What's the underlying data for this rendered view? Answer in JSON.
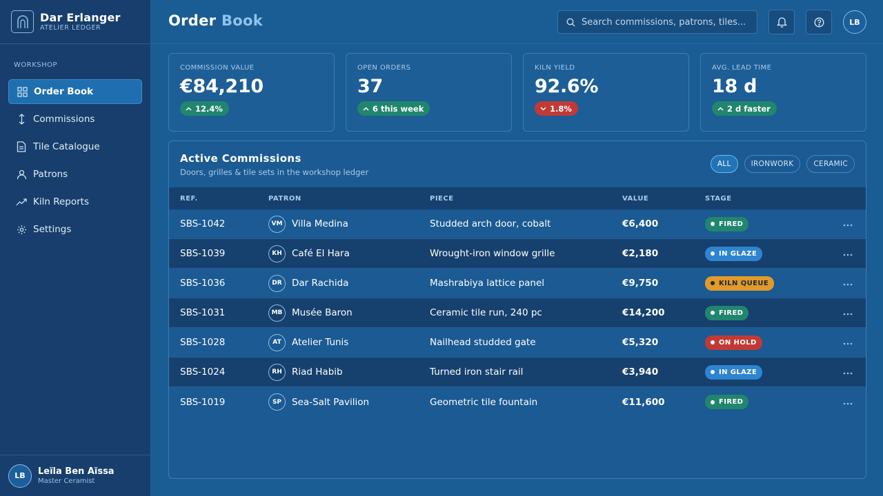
{
  "brand": {
    "name": "Dar Erlanger",
    "subtitle": "ATELIER LEDGER",
    "logo_icon": "arch-icon"
  },
  "sidebar": {
    "section_label": "WORKSHOP",
    "items": [
      {
        "label": "Order Book",
        "icon": "grid-icon",
        "active": true
      },
      {
        "label": "Commissions",
        "icon": "vertical-arrows-icon"
      },
      {
        "label": "Tile Catalogue",
        "icon": "document-icon"
      },
      {
        "label": "Patrons",
        "icon": "person-icon"
      },
      {
        "label": "Kiln Reports",
        "icon": "trend-icon"
      },
      {
        "label": "Settings",
        "icon": "gear-icon"
      }
    ],
    "user": {
      "initials": "LB",
      "name": "Leïla Ben Aïssa",
      "role": "Master Ceramist"
    }
  },
  "header": {
    "title_main": "Order",
    "title_accent": "Book",
    "search_placeholder": "Search commissions, patrons, tiles...",
    "avatar_initials": "LB"
  },
  "kpis": [
    {
      "label": "COMMISSION VALUE",
      "value": "€84,210",
      "badge": "12.4%",
      "trend": "up"
    },
    {
      "label": "OPEN ORDERS",
      "value": "37",
      "badge": "6 this week",
      "trend": "up"
    },
    {
      "label": "KILN YIELD",
      "value": "92.6%",
      "badge": "1.8%",
      "trend": "down"
    },
    {
      "label": "AVG. LEAD TIME",
      "value": "18 d",
      "badge": "2 d faster",
      "trend": "up"
    }
  ],
  "panel": {
    "title": "Active Commissions",
    "subtitle": "Doors, grilles & tile sets in the workshop ledger",
    "filters": [
      {
        "label": "ALL",
        "active": true
      },
      {
        "label": "IRONWORK"
      },
      {
        "label": "CERAMIC"
      }
    ],
    "columns": {
      "ref": "REF.",
      "patron": "PATRON",
      "piece": "PIECE",
      "value": "VALUE",
      "stage": "STAGE"
    },
    "rows": [
      {
        "ref": "SBS-1042",
        "initials": "VM",
        "patron": "Villa Medina",
        "piece": "Studded arch door, cobalt",
        "value": "€6,400",
        "stage": "FIRED",
        "stage_kind": "fired"
      },
      {
        "ref": "SBS-1039",
        "initials": "KH",
        "patron": "Café El Hara",
        "piece": "Wrought-iron window grille",
        "value": "€2,180",
        "stage": "IN GLAZE",
        "stage_kind": "glaze"
      },
      {
        "ref": "SBS-1036",
        "initials": "DR",
        "patron": "Dar Rachida",
        "piece": "Mashrabiya lattice panel",
        "value": "€9,750",
        "stage": "KILN QUEUE",
        "stage_kind": "queue"
      },
      {
        "ref": "SBS-1031",
        "initials": "MB",
        "patron": "Musée Baron",
        "piece": "Ceramic tile run, 240 pc",
        "value": "€14,200",
        "stage": "FIRED",
        "stage_kind": "fired"
      },
      {
        "ref": "SBS-1028",
        "initials": "AT",
        "patron": "Atelier Tunis",
        "piece": "Nailhead studded gate",
        "value": "€5,320",
        "stage": "ON HOLD",
        "stage_kind": "hold"
      },
      {
        "ref": "SBS-1024",
        "initials": "RH",
        "patron": "Riad Habib",
        "piece": "Turned iron stair rail",
        "value": "€3,940",
        "stage": "IN GLAZE",
        "stage_kind": "glaze"
      },
      {
        "ref": "SBS-1019",
        "initials": "SP",
        "patron": "Sea-Salt Pavilion",
        "piece": "Geometric tile fountain",
        "value": "€11,600",
        "stage": "FIRED",
        "stage_kind": "fired"
      }
    ],
    "more_glyph": "···"
  },
  "colors": {
    "accent": "#8ec4ee",
    "fired": "#21866d",
    "glaze": "#2e84cf",
    "queue": "#e09a2a",
    "hold": "#c13a36"
  }
}
